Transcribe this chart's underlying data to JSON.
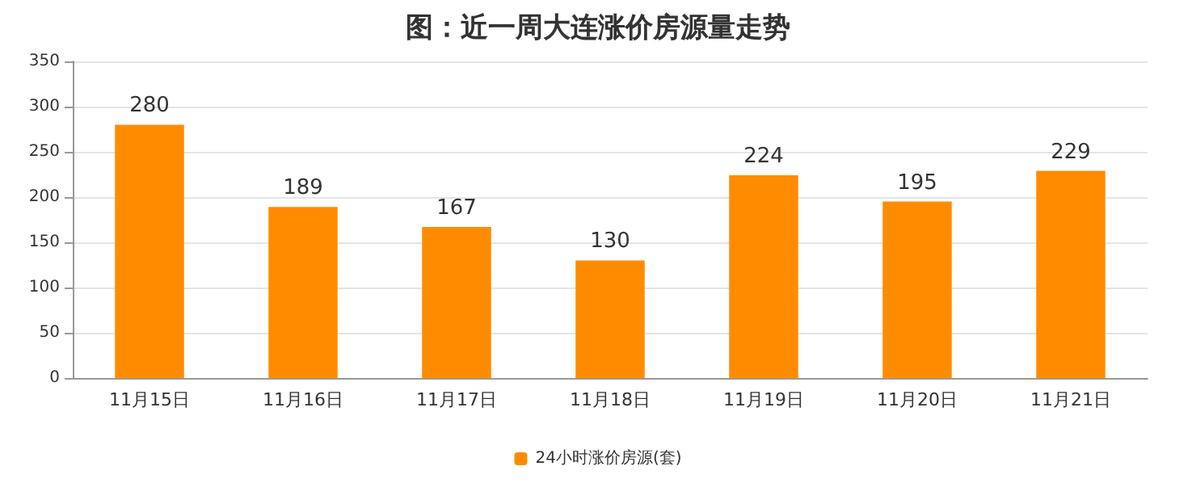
{
  "chart_data": {
    "type": "bar",
    "title": "图：近一周大连涨价房源量走势",
    "categories": [
      "11月15日",
      "11月16日",
      "11月17日",
      "11月18日",
      "11月19日",
      "11月20日",
      "11月21日"
    ],
    "series": [
      {
        "name": "24小时涨价房源(套)",
        "color": "#ff8c00",
        "values": [
          280,
          189,
          167,
          130,
          224,
          195,
          229
        ]
      }
    ],
    "ylim": [
      0,
      350
    ],
    "yticks": [
      0,
      50,
      100,
      150,
      200,
      250,
      300,
      350
    ],
    "grid": "y",
    "legend": "bottom",
    "data_labels": true
  }
}
